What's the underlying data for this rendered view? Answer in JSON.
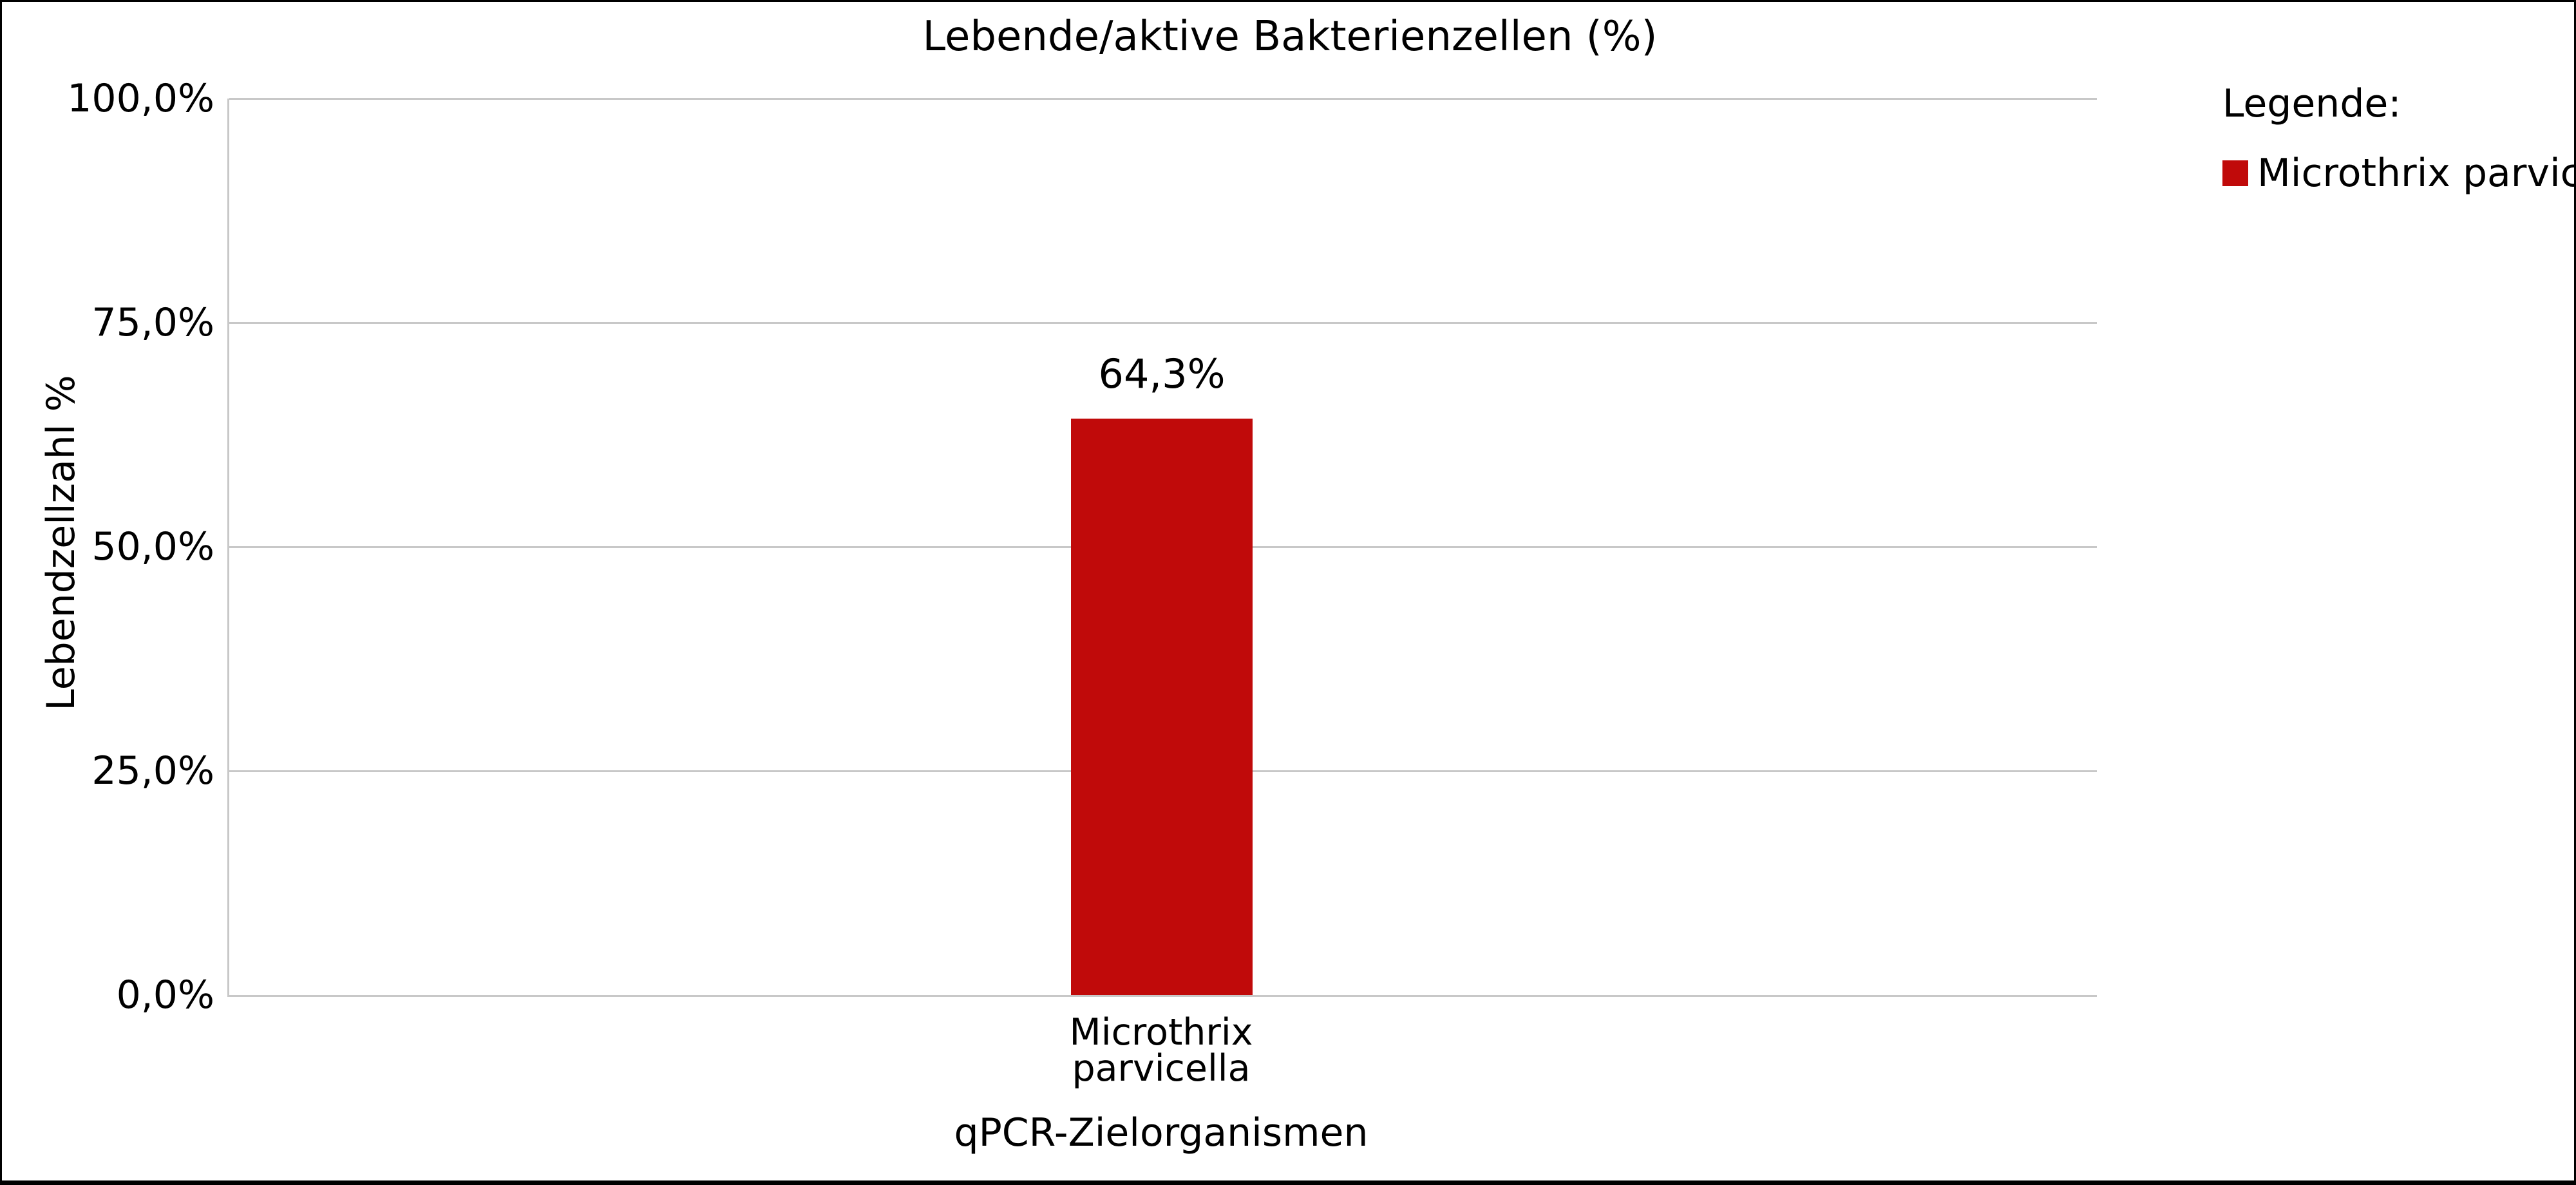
{
  "chart_data": {
    "type": "bar",
    "title": "Lebende/aktive Bakterienzellen (%)",
    "xlabel": "qPCR-Zielorganismen",
    "ylabel": "Lebendzellzahl %",
    "categories": [
      "Microthrix parvicella"
    ],
    "values": [
      64.3
    ],
    "value_labels": [
      "64,3%"
    ],
    "ylim": [
      0,
      100
    ],
    "ytick_labels": [
      "100,0%",
      "75,0%",
      "50,0%",
      "25,0%",
      "0,0%"
    ],
    "grid": true,
    "legend_position": "right",
    "legend_entries": [
      "Microthrix parvicella"
    ]
  },
  "title": "Lebende/aktive Bakterienzellen (%)",
  "y_axis": {
    "label": "Lebendzellzahl %",
    "ticks": [
      "100,0%",
      "75,0%",
      "50,0%",
      "25,0%",
      "0,0%"
    ]
  },
  "x_axis": {
    "title": "qPCR-Zielorganismen",
    "category_lines": [
      "Microthrix",
      "parvicella"
    ]
  },
  "bar": {
    "value_label": "64,3%"
  },
  "legend": {
    "heading": "Legende:",
    "items": [
      {
        "label": "Microthrix parvicella",
        "color": "#c00a0a"
      }
    ]
  },
  "colors": {
    "bar": "#c00a0a",
    "grid": "#c8c8c8",
    "frame_border": "#000000",
    "bottom_bar": "#000000"
  }
}
